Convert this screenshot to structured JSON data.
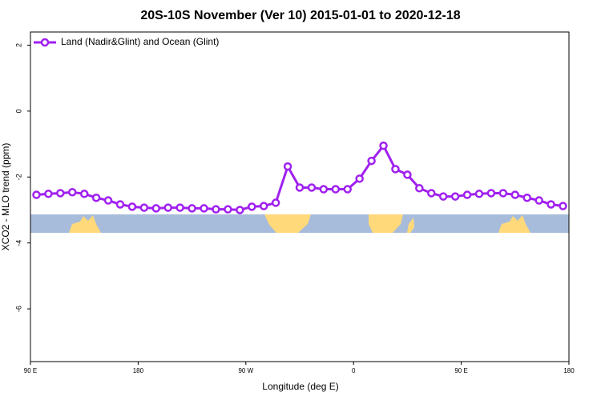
{
  "chart_data": {
    "type": "line",
    "title": "20S-10S November (Ver 10)   2015-01-01 to 2020-12-18",
    "xlabel": "Longitude (deg E)",
    "ylabel": "XCO2 - MLO trend (ppm)",
    "x": [
      95,
      105,
      115,
      125,
      135,
      145,
      155,
      165,
      175,
      185,
      195,
      205,
      215,
      225,
      235,
      245,
      255,
      265,
      275,
      285,
      295,
      305,
      315,
      325,
      335,
      345,
      355,
      365,
      375,
      385,
      395,
      405,
      415,
      425,
      435,
      445,
      455,
      465,
      475,
      485,
      495,
      505,
      515,
      525,
      535
    ],
    "series": [
      {
        "name": "Land (Nadir&Glint) and Ocean (Glint)",
        "color": "#a020f0",
        "values": [
          -2.54,
          -2.51,
          -2.49,
          -2.46,
          -2.51,
          -2.63,
          -2.71,
          -2.83,
          -2.9,
          -2.93,
          -2.95,
          -2.93,
          -2.93,
          -2.95,
          -2.95,
          -2.98,
          -2.98,
          -3.0,
          -2.9,
          -2.88,
          -2.78,
          -1.68,
          -2.32,
          -2.32,
          -2.37,
          -2.37,
          -2.37,
          -2.05,
          -1.51,
          -1.05,
          -1.76,
          -1.93,
          -2.34,
          -2.49,
          -2.59,
          -2.59,
          -2.54,
          -2.51,
          -2.49,
          -2.49,
          -2.54,
          -2.63,
          -2.71,
          -2.83,
          -2.88
        ]
      }
    ],
    "xlim": [
      90,
      540
    ],
    "xticks": [
      {
        "value": 90,
        "label": "90 E"
      },
      180,
      {
        "value": 270,
        "label": "90 W"
      },
      {
        "value": 360,
        "label": "0"
      },
      {
        "value": 450,
        "label": "90 E"
      },
      {
        "value": 540,
        "label": "180"
      }
    ],
    "ylim": [
      -7.6,
      2.4
    ],
    "yticks": [
      2,
      0,
      -2,
      -4,
      -6
    ],
    "legend": "top-left"
  }
}
